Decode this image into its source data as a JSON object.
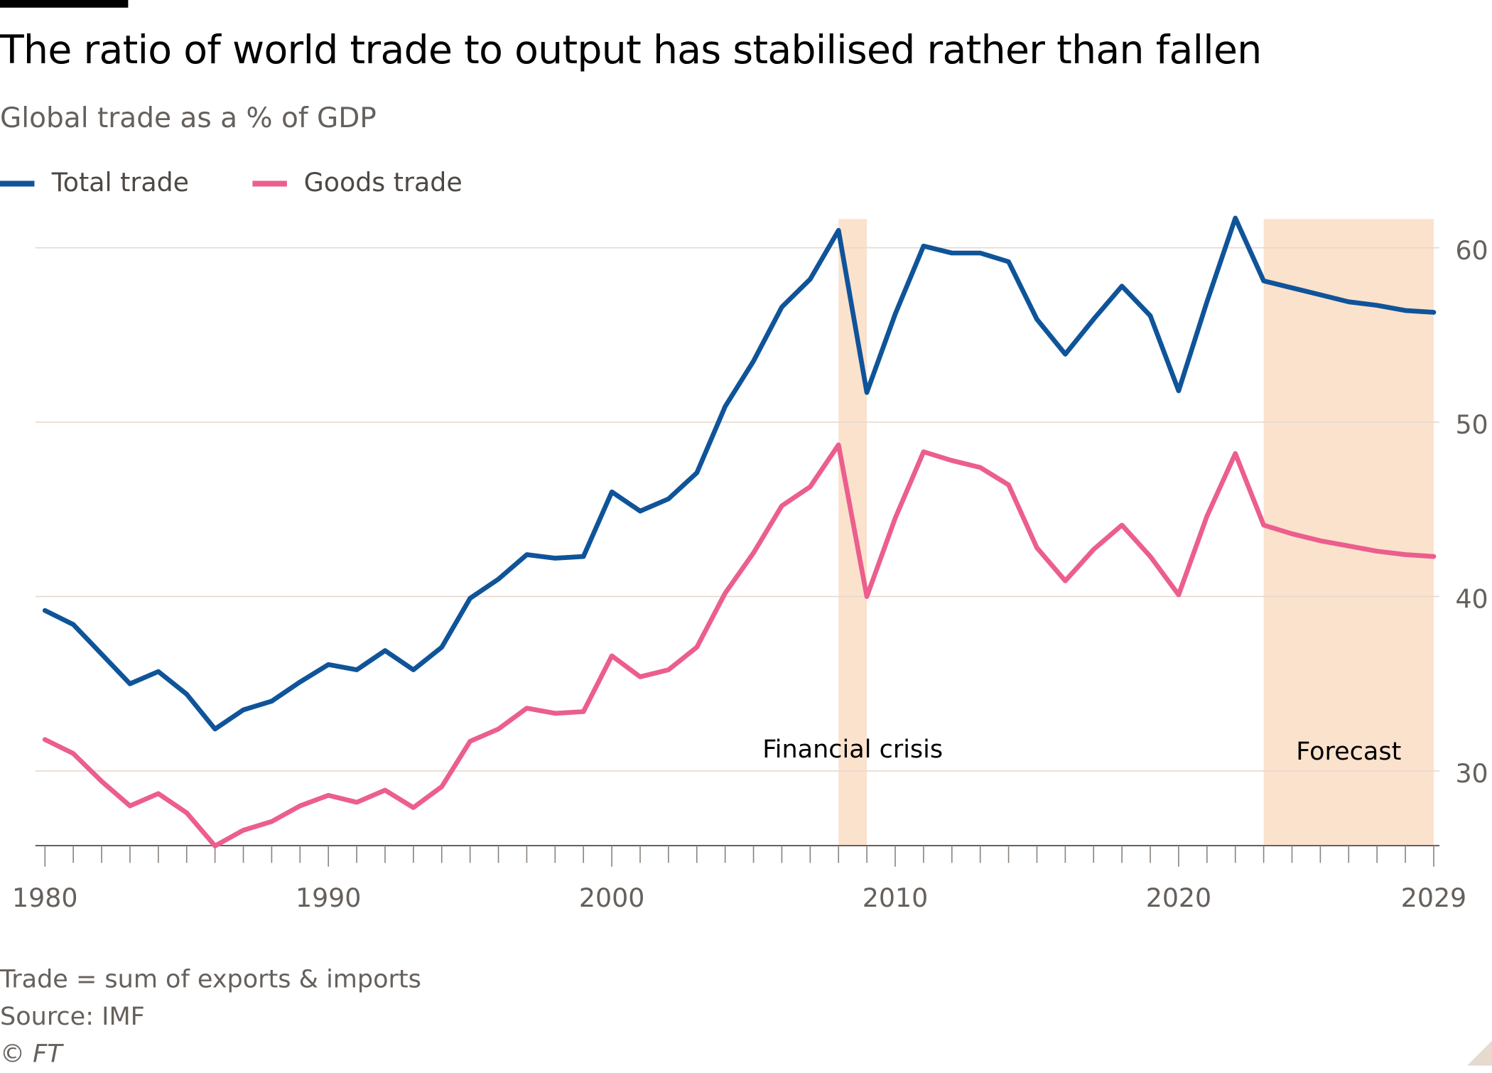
{
  "title": "The ratio of world trade to output has stabilised rather than fallen",
  "subtitle": "Global trade as a % of GDP",
  "footer": {
    "note": "Trade = sum of exports & imports",
    "source": "Source: IMF",
    "copyright": "© FT"
  },
  "chart_data": {
    "type": "line",
    "title": "The ratio of world trade to output has stabilised rather than fallen",
    "subtitle": "Global trade as a % of GDP",
    "x": [
      1980,
      1981,
      1982,
      1983,
      1984,
      1985,
      1986,
      1987,
      1988,
      1989,
      1990,
      1991,
      1992,
      1993,
      1994,
      1995,
      1996,
      1997,
      1998,
      1999,
      2000,
      2001,
      2002,
      2003,
      2004,
      2005,
      2006,
      2007,
      2008,
      2009,
      2010,
      2011,
      2012,
      2013,
      2014,
      2015,
      2016,
      2017,
      2018,
      2019,
      2020,
      2021,
      2022,
      2023,
      2024,
      2025,
      2026,
      2027,
      2028,
      2029
    ],
    "series": [
      {
        "name": "Total trade",
        "color": "#0f5499",
        "values": [
          39.2,
          38.4,
          36.7,
          35.0,
          35.7,
          34.4,
          32.4,
          33.5,
          34.0,
          35.1,
          36.1,
          35.8,
          36.9,
          35.8,
          37.1,
          39.9,
          41.0,
          42.4,
          42.2,
          42.3,
          46.0,
          44.9,
          45.6,
          47.1,
          50.9,
          53.5,
          56.6,
          58.2,
          61.0,
          51.7,
          56.2,
          60.1,
          59.7,
          59.7,
          59.2,
          55.9,
          53.9,
          55.9,
          57.8,
          56.1,
          51.8,
          56.9,
          61.7,
          58.1,
          57.7,
          57.3,
          56.9,
          56.7,
          56.4,
          56.3
        ]
      },
      {
        "name": "Goods trade",
        "color": "#eb5e8d",
        "values": [
          31.8,
          31.0,
          29.4,
          28.0,
          28.7,
          27.6,
          25.7,
          26.6,
          27.1,
          28.0,
          28.6,
          28.2,
          28.9,
          27.9,
          29.1,
          31.7,
          32.4,
          33.6,
          33.3,
          33.4,
          36.6,
          35.4,
          35.8,
          37.1,
          40.2,
          42.5,
          45.2,
          46.3,
          48.7,
          40.0,
          44.5,
          48.3,
          47.8,
          47.4,
          46.4,
          42.8,
          40.9,
          42.7,
          44.1,
          42.3,
          40.1,
          44.6,
          48.2,
          44.1,
          43.6,
          43.2,
          42.9,
          42.6,
          42.4,
          42.3
        ]
      }
    ],
    "xlim": [
      1980,
      2029
    ],
    "ylim": [
      25.7,
      62
    ],
    "x_tick_labels": [
      "1980",
      "1990",
      "2000",
      "2010",
      "2020",
      "2029"
    ],
    "y_ticks": [
      30,
      40,
      50,
      60
    ],
    "y_tick_labels": [
      "30",
      "40",
      "50",
      "60"
    ],
    "y_axis_side": "right",
    "grid": "horizontal",
    "legend": "top-left",
    "shaded_regions": [
      {
        "label": "Financial crisis",
        "from": 2008,
        "to": 2009,
        "color": "#fbe2cd"
      },
      {
        "label": "Forecast",
        "from": 2023,
        "to": 2029,
        "color": "#fbe2cd"
      }
    ]
  }
}
